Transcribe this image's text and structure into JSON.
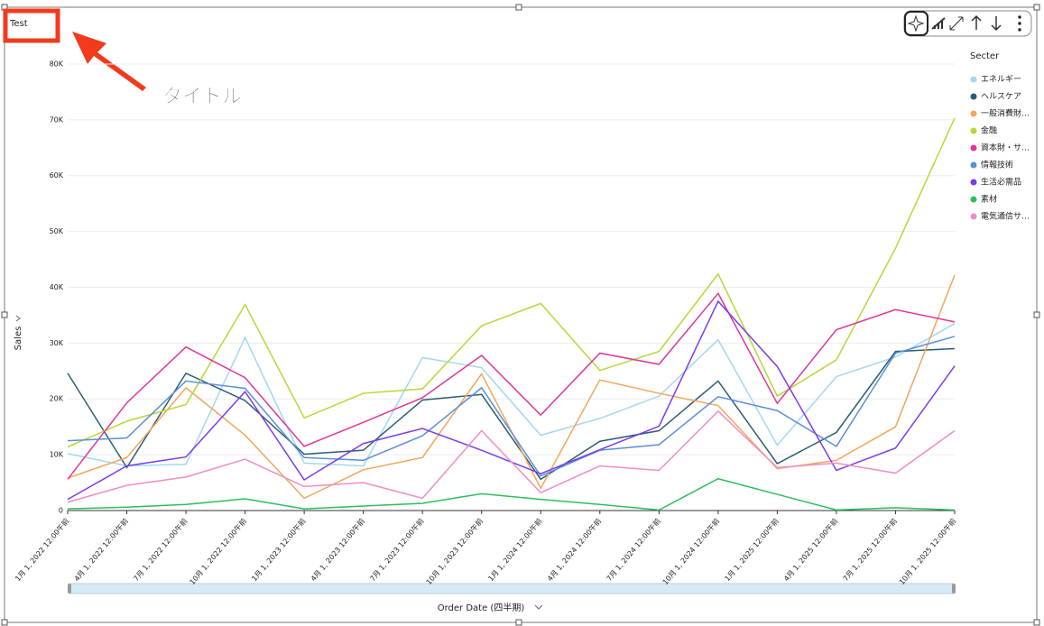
{
  "chart_data": {
    "type": "line",
    "title": "Test",
    "annotation": "タイトル",
    "x_label": "Order Date (四半期)",
    "y_label": "Sales",
    "legend_title": "Secter",
    "legend_position": "right",
    "grid": true,
    "categories": [
      "1月 1, 2022 12:00午前",
      "4月 1, 2022 12:00午前",
      "7月 1, 2022 12:00午前",
      "10月 1, 2022 12:00午前",
      "1月 1, 2023 12:00午前",
      "4月 1, 2023 12:00午前",
      "7月 1, 2023 12:00午前",
      "10月 1, 2023 12:00午前",
      "1月 1, 2024 12:00午前",
      "4月 1, 2024 12:00午前",
      "7月 1, 2024 12:00午前",
      "10月 1, 2024 12:00午前",
      "1月 1, 2025 12:00午前",
      "4月 1, 2025 12:00午前",
      "7月 1, 2025 12:00午前",
      "10月 1, 2025 12:00午前"
    ],
    "ylim": [
      0,
      83000
    ],
    "yticks": [
      0,
      {
        "value": 10000,
        "label": "10K"
      },
      {
        "value": 20000,
        "label": "20K"
      },
      {
        "value": 30000,
        "label": "30K"
      },
      {
        "value": 40000,
        "label": "40K"
      },
      {
        "value": 50000,
        "label": "50K"
      },
      {
        "value": 60000,
        "label": "60K"
      },
      {
        "value": 70000,
        "label": "70K"
      },
      {
        "value": 80000,
        "label": "80K"
      }
    ],
    "series": [
      {
        "name": "エネルギー",
        "color": "#a3d8ef",
        "values": [
          10200,
          8000,
          8300,
          31000,
          8500,
          8000,
          27400,
          25600,
          13500,
          16500,
          20500,
          30600,
          11700,
          24000,
          27500,
          33500
        ]
      },
      {
        "name": "ヘルスケア",
        "color": "#2b5c72",
        "values": [
          24600,
          7700,
          24600,
          19700,
          10100,
          10800,
          19800,
          20800,
          5600,
          12400,
          14300,
          23200,
          8400,
          14000,
          28500,
          29000
        ]
      },
      {
        "name": "一般消費財…",
        "color": "#f4a55a",
        "values": [
          5800,
          9500,
          22000,
          13500,
          2200,
          7300,
          9500,
          24500,
          4000,
          23400,
          21000,
          18800,
          7500,
          9000,
          15000,
          42200
        ]
      },
      {
        "name": "金融",
        "color": "#b4d936",
        "values": [
          11400,
          16000,
          19000,
          36900,
          16600,
          21000,
          21800,
          33100,
          37100,
          25100,
          28500,
          42400,
          20500,
          27000,
          47000,
          70300
        ]
      },
      {
        "name": "資本財・サ…",
        "color": "#e0359a",
        "values": [
          5600,
          19300,
          29300,
          23800,
          11500,
          15800,
          20200,
          27800,
          17100,
          28200,
          26200,
          38900,
          19200,
          32400,
          36000,
          33800
        ]
      },
      {
        "name": "情報技術",
        "color": "#5b8fd9",
        "values": [
          12500,
          13000,
          23200,
          21900,
          9500,
          9000,
          13400,
          22000,
          6200,
          10800,
          11800,
          20400,
          17900,
          11500,
          28200,
          31200
        ]
      },
      {
        "name": "生活必需品",
        "color": "#7b3ce8",
        "values": [
          2000,
          8000,
          9600,
          21300,
          5500,
          12000,
          14700,
          10800,
          6600,
          10900,
          15100,
          37500,
          25800,
          7200,
          11200,
          25900
        ]
      },
      {
        "name": "素材",
        "color": "#2ebd5c",
        "values": [
          300,
          600,
          1100,
          2100,
          300,
          800,
          1300,
          3000,
          2000,
          1100,
          100,
          5700,
          2900,
          100,
          500,
          100
        ]
      },
      {
        "name": "電気通信サ…",
        "color": "#ef8ec3",
        "values": [
          1500,
          4500,
          6000,
          9200,
          4300,
          5000,
          2200,
          14300,
          3200,
          8000,
          7200,
          17800,
          7700,
          8500,
          6700,
          14300
        ]
      }
    ]
  }
}
